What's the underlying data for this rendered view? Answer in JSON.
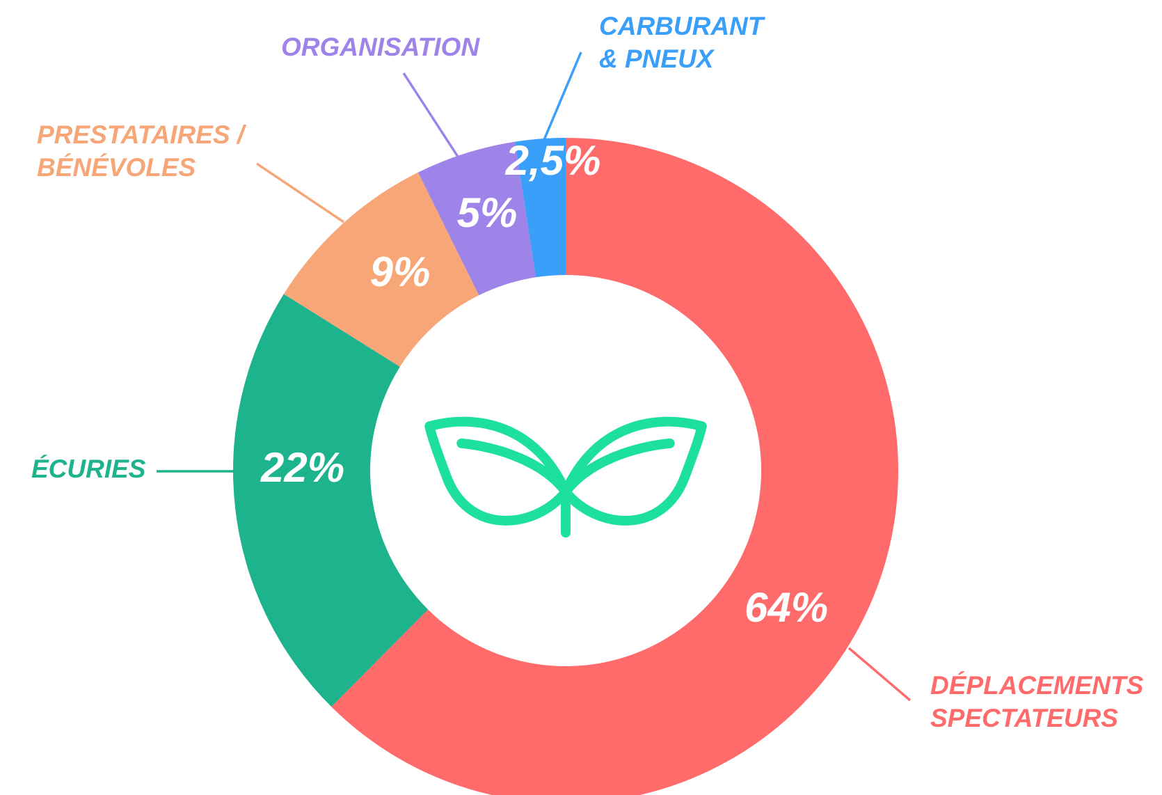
{
  "chart_data": {
    "type": "donut",
    "categories": [
      [
        "DÉPLACEMENTS",
        "SPECTATEURS"
      ],
      [
        "ÉCURIES"
      ],
      [
        "PRESTATAIRES /",
        "BÉNÉVOLES"
      ],
      [
        "ORGANISATION"
      ],
      [
        "CARBURANT",
        "& PNEUX"
      ]
    ],
    "values": [
      64,
      22,
      9,
      5,
      2.5
    ],
    "value_labels": [
      "64%",
      "22%",
      "9%",
      "5%",
      "2,5%"
    ],
    "colors": [
      "#ff6b6b",
      "#1db38c",
      "#f7a677",
      "#9e84e8",
      "#3a9ff8"
    ]
  }
}
